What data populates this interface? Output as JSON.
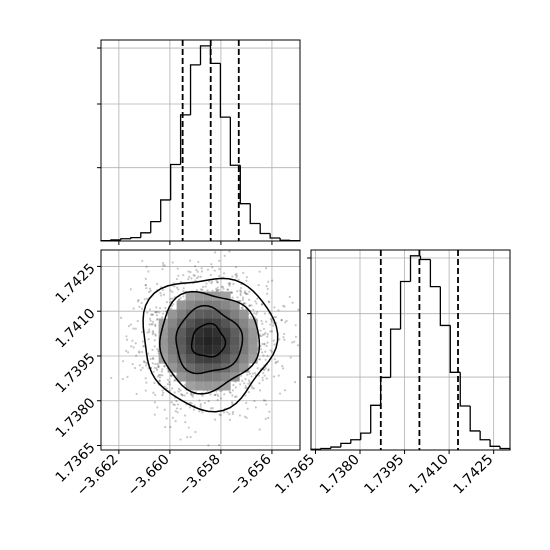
{
  "chart_data": {
    "type": "corner",
    "title": "",
    "parameters": [
      {
        "index": 0,
        "range": [
          -3.6627,
          -3.6549
        ],
        "ticks": [
          -3.662,
          -3.66,
          -3.658,
          -3.656
        ],
        "tick_labels": [
          "−3.662",
          "−3.660",
          "−3.658",
          "−3.656"
        ],
        "quantiles": [
          -3.6595,
          -3.6584,
          -3.6573
        ]
      },
      {
        "index": 1,
        "range": [
          1.73635,
          1.74305
        ],
        "ticks": [
          1.7365,
          1.738,
          1.7395,
          1.741,
          1.7425
        ],
        "tick_labels": [
          "1.7365",
          "1.7380",
          "1.7395",
          "1.7410",
          "1.7425"
        ],
        "quantiles": [
          1.7387,
          1.74,
          1.7413
        ]
      }
    ],
    "panels": [
      {
        "name": "hist-param-0",
        "type": "histogram",
        "bin_edges_start": -3.6627,
        "bin_width": 0.00039,
        "counts": [
          1,
          3,
          6,
          9,
          22,
          52,
          110,
          205,
          338,
          472,
          523,
          476,
          332,
          203,
          100,
          47,
          20,
          8,
          2,
          1
        ]
      },
      {
        "name": "hist-param-1",
        "type": "histogram",
        "bin_edges_start": 1.73635,
        "bin_width": 0.000335,
        "counts": [
          2,
          4,
          8,
          18,
          28,
          46,
          122,
          198,
          330,
          460,
          530,
          520,
          446,
          340,
          212,
          120,
          52,
          28,
          10,
          4
        ]
      },
      {
        "name": "density-2d",
        "type": "scatter-contour",
        "center": [
          -3.6585,
          1.74
        ],
        "sigma": [
          0.0013,
          0.0011
        ],
        "contour_levels": [
          0.5,
          1.0,
          1.5,
          2.0
        ]
      }
    ],
    "grid": true,
    "legend": "none"
  }
}
